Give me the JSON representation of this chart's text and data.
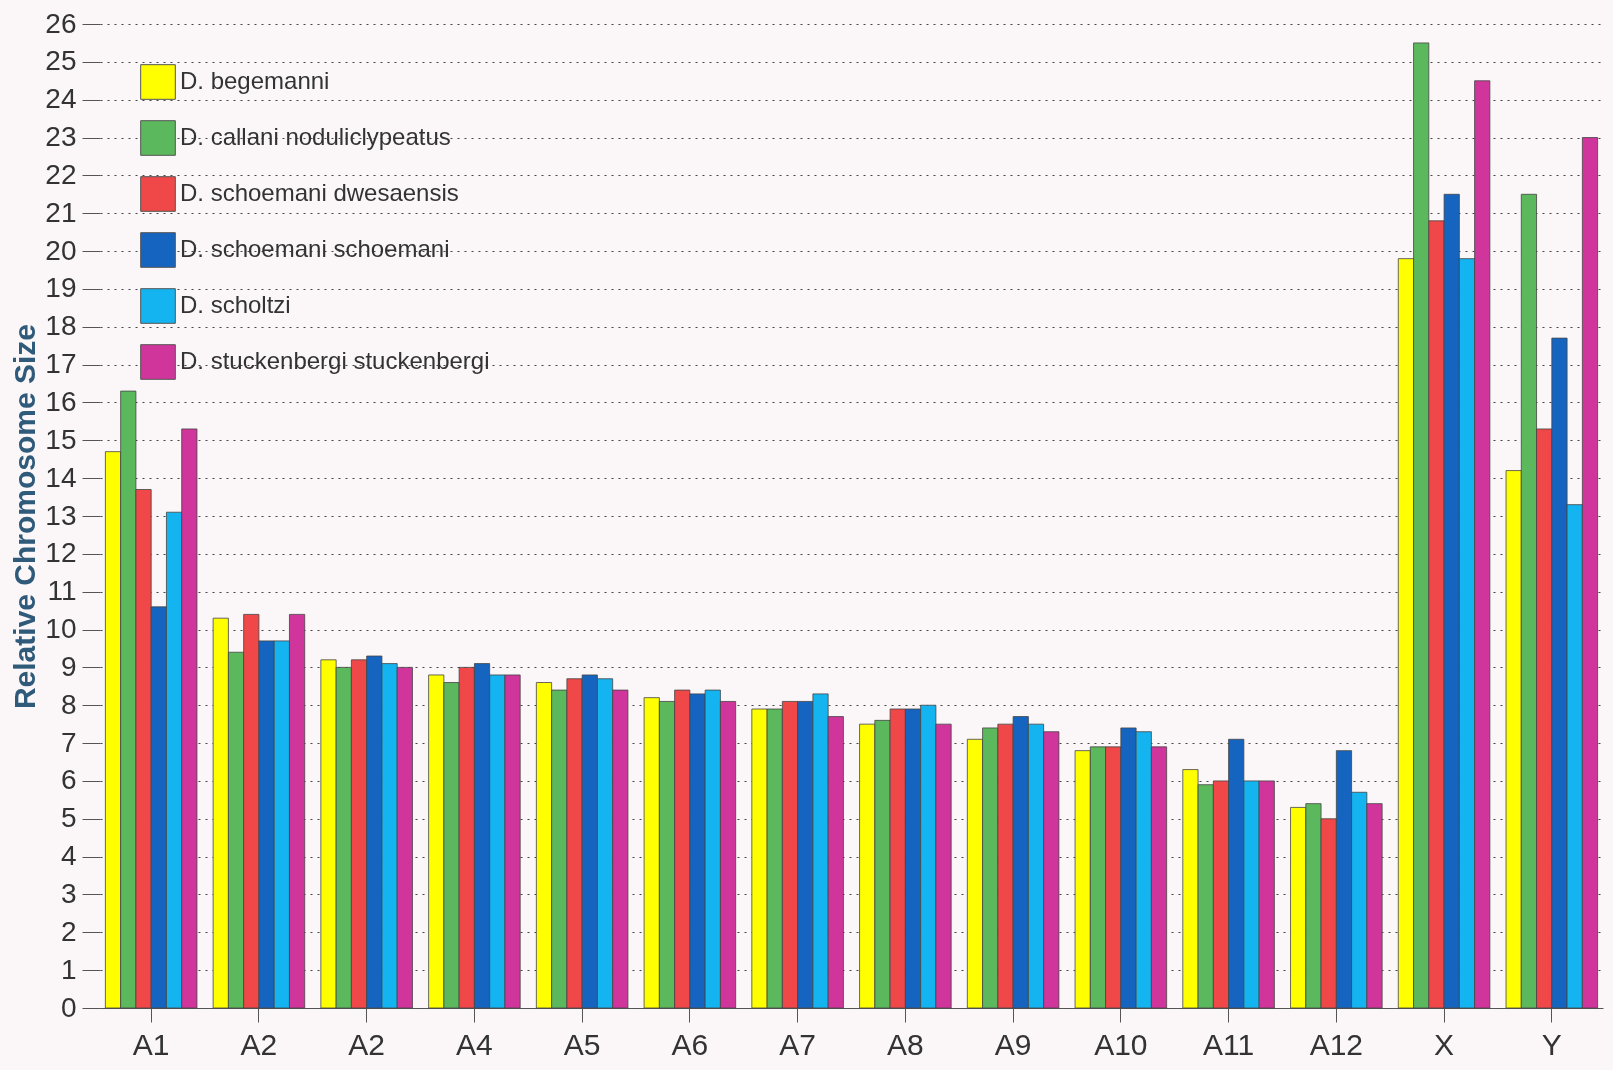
{
  "chart_data": {
    "type": "bar",
    "ylabel": "Relative Chromosome Size",
    "categories": [
      "A1",
      "A2",
      "A2",
      "A4",
      "A5",
      "A6",
      "A7",
      "A8",
      "A9",
      "A10",
      "A11",
      "A12",
      "X",
      "Y"
    ],
    "series": [
      {
        "name": "D. begemanni",
        "color": "#ffff00",
        "values": [
          14.7,
          10.3,
          9.2,
          8.8,
          8.6,
          8.2,
          7.9,
          7.5,
          7.1,
          6.8,
          6.3,
          5.3,
          19.8,
          14.2
        ]
      },
      {
        "name": "D. callani noduliclypeatus",
        "color": "#5cb85c",
        "values": [
          16.3,
          9.4,
          9.0,
          8.6,
          8.4,
          8.1,
          7.9,
          7.6,
          7.4,
          6.9,
          5.9,
          5.4,
          25.5,
          21.5
        ]
      },
      {
        "name": "D. schoemani dwesaensis",
        "color": "#f04848",
        "values": [
          13.7,
          10.4,
          9.2,
          9.0,
          8.7,
          8.4,
          8.1,
          7.9,
          7.5,
          6.9,
          6.0,
          5.0,
          20.8,
          15.3
        ]
      },
      {
        "name": "D. schoemani schoemani",
        "color": "#1565c0",
        "values": [
          10.6,
          9.7,
          9.3,
          9.1,
          8.8,
          8.3,
          8.1,
          7.9,
          7.7,
          7.4,
          7.1,
          6.8,
          21.5,
          17.7
        ]
      },
      {
        "name": "D. scholtzi",
        "color": "#14b4f0",
        "values": [
          13.1,
          9.7,
          9.1,
          8.8,
          8.7,
          8.4,
          8.3,
          8.0,
          7.5,
          7.3,
          6.0,
          5.7,
          19.8,
          13.3
        ]
      },
      {
        "name": "D. stuckenbergi stuckenbergi",
        "color": "#d0359b",
        "values": [
          15.3,
          10.4,
          9.0,
          8.8,
          8.4,
          8.1,
          7.7,
          7.5,
          7.3,
          6.9,
          6.0,
          5.4,
          24.5,
          23.0
        ]
      }
    ],
    "ylim": [
      0,
      26
    ],
    "yticks": [
      0,
      1,
      2,
      3,
      4,
      5,
      6,
      7,
      8,
      9,
      10,
      11,
      12,
      13,
      14,
      15,
      16,
      17,
      18,
      19,
      20,
      21,
      22,
      23,
      24,
      25,
      26
    ],
    "grid": "y",
    "legend": "top left"
  }
}
